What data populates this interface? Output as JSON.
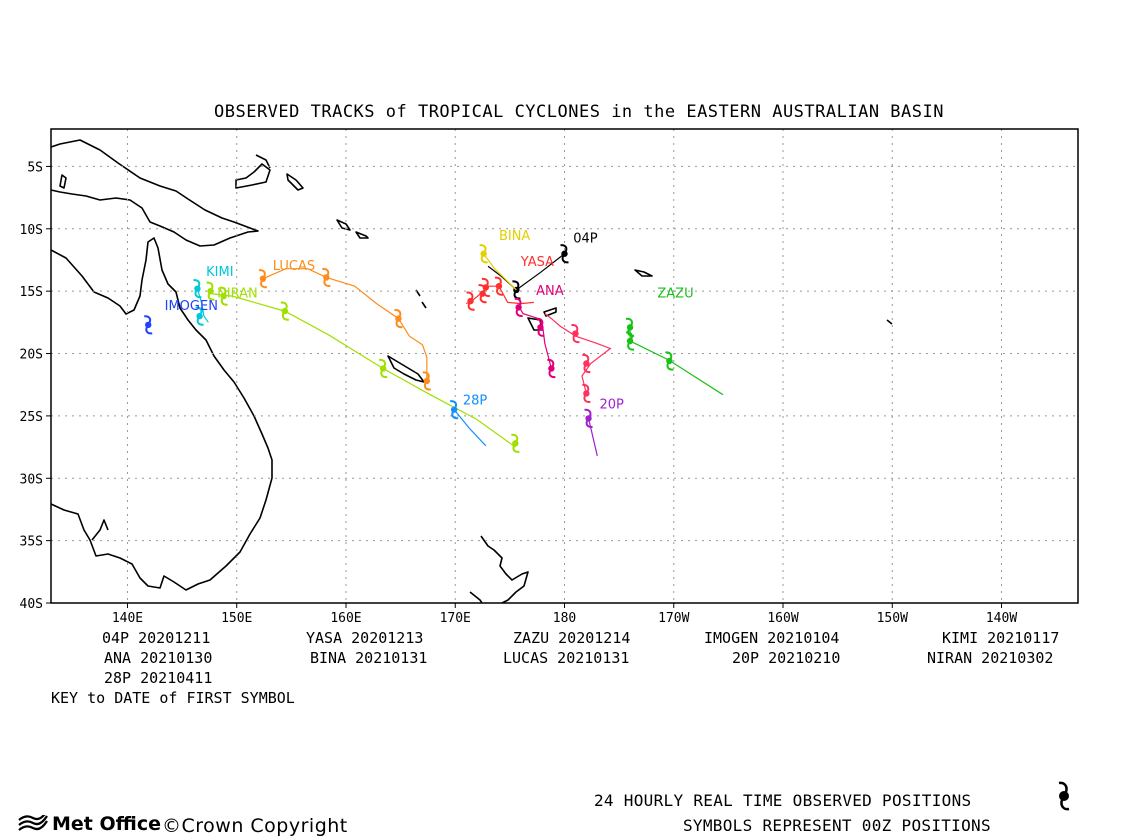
{
  "title": "OBSERVED TRACKS of TROPICAL CYCLONES in the EASTERN AUSTRALIAN BASIN",
  "map": {
    "lon_range": [
      133,
      227
    ],
    "lat_range": [
      -40,
      -2
    ],
    "lon_ticks": [
      {
        "v": 140,
        "label": "140E"
      },
      {
        "v": 150,
        "label": "150E"
      },
      {
        "v": 160,
        "label": "160E"
      },
      {
        "v": 170,
        "label": "170E"
      },
      {
        "v": 180,
        "label": "180"
      },
      {
        "v": 190,
        "label": "170W"
      },
      {
        "v": 200,
        "label": "160W"
      },
      {
        "v": 210,
        "label": "150W"
      },
      {
        "v": 220,
        "label": "140W"
      }
    ],
    "lat_ticks": [
      {
        "v": -5,
        "label": "5S"
      },
      {
        "v": -10,
        "label": "10S"
      },
      {
        "v": -15,
        "label": "15S"
      },
      {
        "v": -20,
        "label": "20S"
      },
      {
        "v": -25,
        "label": "25S"
      },
      {
        "v": -30,
        "label": "30S"
      },
      {
        "v": -35,
        "label": "35S"
      },
      {
        "v": -40,
        "label": "40S"
      }
    ],
    "grid": true
  },
  "cyclones": [
    {
      "name": "04P",
      "color": "#000000",
      "label_at": [
        180.8,
        -11.1
      ],
      "track": [
        [
          180.0,
          -12.0
        ],
        [
          177.8,
          -13.5
        ],
        [
          175.6,
          -14.9
        ],
        [
          174.2,
          -13.8
        ],
        [
          173.0,
          -13.0
        ]
      ],
      "symbols": [
        [
          180.0,
          -12.0
        ],
        [
          175.6,
          -14.9
        ]
      ]
    },
    {
      "name": "BINA",
      "color": "#e3d000",
      "label_at": [
        174.0,
        -10.9
      ],
      "track": [
        [
          172.6,
          -12.0
        ],
        [
          173.6,
          -13.2
        ],
        [
          175.6,
          -14.9
        ]
      ],
      "symbols": [
        [
          172.6,
          -12.0
        ]
      ]
    },
    {
      "name": "YASA",
      "color": "#ff3030",
      "label_at": [
        176.0,
        -13.0
      ],
      "track": [
        [
          177.2,
          -15.9
        ],
        [
          176.0,
          -16.0
        ],
        [
          174.8,
          -15.9
        ],
        [
          174.0,
          -14.6
        ],
        [
          173.0,
          -14.6
        ],
        [
          172.6,
          -15.0
        ],
        [
          171.5,
          -15.8
        ],
        [
          171.0,
          -16.0
        ]
      ],
      "symbols": [
        [
          174.0,
          -14.6
        ],
        [
          172.8,
          -14.7
        ],
        [
          172.5,
          -15.2
        ],
        [
          171.4,
          -15.8
        ]
      ]
    },
    {
      "name": "ANA",
      "color": "#e0007a",
      "label_at": [
        177.4,
        -15.3
      ],
      "track": [
        [
          175.8,
          -16.2
        ],
        [
          176.2,
          -16.8
        ],
        [
          177.6,
          -17.2
        ],
        [
          178.0,
          -17.8
        ],
        [
          178.2,
          -19.2
        ],
        [
          178.8,
          -21.2
        ]
      ],
      "symbols": [
        [
          175.8,
          -16.3
        ],
        [
          177.8,
          -17.9
        ],
        [
          178.8,
          -21.2
        ]
      ]
    },
    {
      "name": "LUCAS",
      "color": "#ff8c1a",
      "label_at": [
        153.3,
        -13.3
      ],
      "track": [
        [
          152.4,
          -14.0
        ],
        [
          154.5,
          -13.2
        ],
        [
          156.5,
          -13.2
        ],
        [
          158.2,
          -13.9
        ],
        [
          160.8,
          -14.6
        ],
        [
          162.8,
          -16.0
        ],
        [
          164.8,
          -17.2
        ],
        [
          165.8,
          -18.6
        ],
        [
          167.0,
          -19.3
        ],
        [
          167.4,
          -20.3
        ],
        [
          167.4,
          -22.2
        ]
      ],
      "symbols": [
        [
          152.4,
          -14.0
        ],
        [
          158.2,
          -13.9
        ],
        [
          164.8,
          -17.2
        ],
        [
          167.4,
          -22.2
        ]
      ]
    },
    {
      "name": "NIRAN",
      "color": "#a0e000",
      "label_at": [
        148.2,
        -15.5
      ],
      "track": [
        [
          147.6,
          -15.2
        ],
        [
          149.6,
          -15.4
        ],
        [
          154.4,
          -16.6
        ],
        [
          158.4,
          -18.5
        ],
        [
          163.4,
          -21.2
        ],
        [
          167.5,
          -23.2
        ],
        [
          172.0,
          -25.3
        ],
        [
          175.5,
          -27.5
        ]
      ],
      "symbols": [
        [
          147.6,
          -15.0
        ],
        [
          148.8,
          -15.4
        ],
        [
          154.4,
          -16.6
        ],
        [
          163.4,
          -21.2
        ],
        [
          175.5,
          -27.2
        ]
      ]
    },
    {
      "name": "KIMI",
      "color": "#00c8d8",
      "label_at": [
        147.2,
        -13.8
      ],
      "track": [
        [
          146.4,
          -14.8
        ],
        [
          146.8,
          -16.0
        ],
        [
          147.0,
          -17.0
        ],
        [
          147.4,
          -17.5
        ]
      ],
      "symbols": [
        [
          146.4,
          -14.8
        ],
        [
          146.6,
          -17.0
        ]
      ]
    },
    {
      "name": "IMOGEN",
      "color": "#2040ff",
      "label_at": [
        143.4,
        -16.5
      ],
      "track": [
        [
          141.9,
          -17.5
        ],
        [
          142.0,
          -17.9
        ]
      ],
      "symbols": [
        [
          141.9,
          -17.7
        ]
      ]
    },
    {
      "name": "28P",
      "color": "#1090ff",
      "label_at": [
        170.7,
        -24.1
      ],
      "track": [
        [
          169.9,
          -24.5
        ],
        [
          171.3,
          -26.0
        ],
        [
          172.8,
          -27.4
        ]
      ],
      "symbols": [
        [
          169.9,
          -24.5
        ]
      ]
    },
    {
      "name": "ZAZU",
      "color": "#18c018",
      "label_at": [
        188.5,
        -15.5
      ],
      "track": [
        [
          186.0,
          -17.8
        ],
        [
          186.0,
          -19.0
        ],
        [
          189.5,
          -20.5
        ],
        [
          194.5,
          -23.3
        ]
      ],
      "symbols": [
        [
          186.0,
          -17.9
        ],
        [
          186.0,
          -19.0
        ],
        [
          189.6,
          -20.6
        ]
      ]
    },
    {
      "name": "20P",
      "color": "#a020d0",
      "label_at": [
        183.2,
        -24.4
      ],
      "track": [
        [
          182.2,
          -25.2
        ],
        [
          183.0,
          -28.2
        ]
      ],
      "symbols": [
        [
          182.2,
          -25.2
        ]
      ]
    },
    {
      "name": "",
      "color": "#ff3060",
      "label_at": [
        0,
        0
      ],
      "track": [
        [
          178.2,
          -16.8
        ],
        [
          178.8,
          -17.2
        ],
        [
          179.6,
          -17.8
        ],
        [
          181.0,
          -18.6
        ],
        [
          183.0,
          -19.2
        ],
        [
          184.2,
          -19.6
        ],
        [
          182.4,
          -20.8
        ],
        [
          181.6,
          -21.8
        ],
        [
          182.0,
          -23.2
        ]
      ],
      "symbols": [
        [
          181.0,
          -18.4
        ],
        [
          182.0,
          -20.8
        ],
        [
          182.0,
          -23.2
        ]
      ]
    }
  ],
  "key": {
    "rows": [
      [
        "04P 20201211",
        "YASA 20201213",
        "ZAZU 20201214",
        "IMOGEN 20210104",
        "KIMI 20210117"
      ],
      [
        "ANA 20210130",
        "BINA 20210131",
        "LUCAS 20210131",
        "20P 20210210",
        "NIRAN 20210302"
      ],
      [
        "28P 20210411"
      ]
    ],
    "caption": "KEY to DATE of FIRST SYMBOL"
  },
  "footer": {
    "positions_note": "24 HOURLY REAL TIME OBSERVED POSITIONS",
    "symbols_note": "SYMBOLS REPRESENT 00Z POSITIONS",
    "brand": "Met Office",
    "copyright": "©Crown Copyright"
  }
}
